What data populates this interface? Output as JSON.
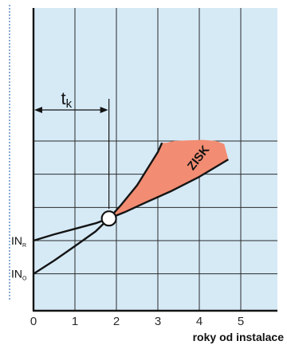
{
  "chart_data": {
    "type": "line",
    "x_axis": {
      "label": "roky od instalace",
      "ticks": [
        "0",
        "1",
        "2",
        "3",
        "4",
        "5"
      ],
      "range": [
        0,
        5.8
      ]
    },
    "y_axis": {
      "labels": [
        {
          "text": "IN",
          "sub": "R",
          "y": 1.1
        },
        {
          "text": "IN",
          "sub": "O",
          "y": 0.2
        }
      ],
      "range": [
        -0.8,
        4.0
      ]
    },
    "grid": true,
    "series": [
      {
        "id": "upper-curve",
        "x": [
          0,
          0.5,
          1.0,
          1.5,
          1.82,
          2.1,
          2.5,
          3.0,
          3.1
        ],
        "y": [
          0.2,
          0.56,
          0.95,
          1.35,
          1.7,
          2.05,
          2.6,
          3.5,
          3.75
        ]
      },
      {
        "id": "lower-curve",
        "x": [
          0,
          0.5,
          1.0,
          1.5,
          1.82,
          2.2,
          2.7,
          3.3,
          4.0,
          4.7
        ],
        "y": [
          1.1,
          1.27,
          1.42,
          1.57,
          1.7,
          1.87,
          2.13,
          2.43,
          2.83,
          3.3
        ]
      }
    ],
    "profit_region": {
      "label": "ZISK",
      "top_edge": {
        "x": [
          1.82,
          2.3,
          2.7,
          3.0,
          3.1,
          3.2,
          3.4,
          3.8,
          4.1,
          4.4,
          4.6,
          4.7
        ],
        "y": [
          1.7,
          2.35,
          2.95,
          3.5,
          3.75,
          3.75,
          3.8,
          3.82,
          3.83,
          3.8,
          3.72,
          3.3
        ]
      },
      "color": "#f28c72"
    },
    "intersection": {
      "x": 1.82,
      "y": 1.7
    },
    "annotation": {
      "text": "t",
      "sub": "k",
      "from_x": 0,
      "to_x": 1.82
    },
    "colors": {
      "background": "#d6eaf6",
      "grid": "#2b2b2b",
      "curve": "#141414",
      "fill": "#f28c72",
      "left_rule": "#3a72b8"
    }
  }
}
